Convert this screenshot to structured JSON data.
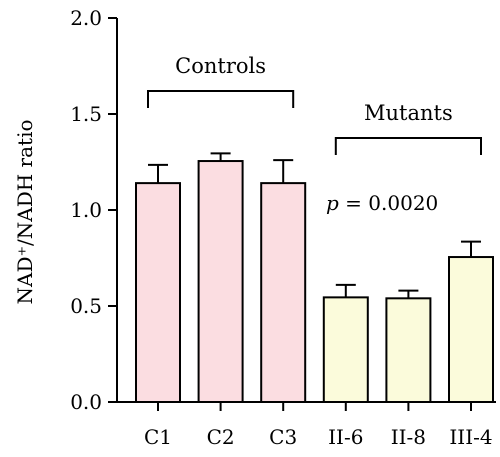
{
  "chart_data": {
    "type": "bar",
    "ylabel": "NAD⁺/NADH ratio",
    "ylim": [
      0,
      2.0
    ],
    "yticks": [
      "0.0",
      "0.5",
      "1.0",
      "1.5",
      "2.0"
    ],
    "categories": [
      "C1",
      "C2",
      "C3",
      "II-6",
      "II-8",
      "III-4"
    ],
    "values": [
      1.14,
      1.255,
      1.14,
      0.545,
      0.54,
      0.755
    ],
    "errors": [
      0.095,
      0.04,
      0.12,
      0.065,
      0.04,
      0.08
    ],
    "bar_colors": [
      "#fbdde1",
      "#fbdde1",
      "#fbdde1",
      "#fbfbdb",
      "#fbfbdb",
      "#fbfbdb"
    ],
    "groups": [
      {
        "label": "Controls",
        "from": 0,
        "to": 2
      },
      {
        "label": "Mutants",
        "from": 3,
        "to": 5
      }
    ],
    "annotation": {
      "italic": "p",
      "text": " = 0.0020"
    }
  }
}
